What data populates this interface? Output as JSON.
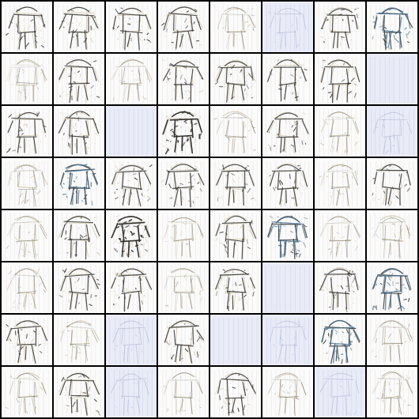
{
  "grid": {
    "rows": 8,
    "cols": 8
  },
  "palette": {
    "border": "#000000",
    "tile_white": "#fbfbfb",
    "tile_blue": "#e9ecf7",
    "ink_dark": "#2a2a2a",
    "ink_blue": "#3d6a8a",
    "ink_tan": "#b8a27a"
  },
  "tiles": [
    {
      "tone": "white",
      "ink": "full"
    },
    {
      "tone": "white",
      "ink": "full"
    },
    {
      "tone": "white",
      "ink": "full"
    },
    {
      "tone": "white",
      "ink": "full"
    },
    {
      "tone": "white",
      "ink": "light"
    },
    {
      "tone": "blue",
      "ink": "faint"
    },
    {
      "tone": "white",
      "ink": "full"
    },
    {
      "tone": "white",
      "ink": "blue"
    },
    {
      "tone": "white",
      "ink": "light"
    },
    {
      "tone": "white",
      "ink": "full"
    },
    {
      "tone": "white",
      "ink": "light"
    },
    {
      "tone": "white",
      "ink": "full"
    },
    {
      "tone": "white",
      "ink": "full"
    },
    {
      "tone": "white",
      "ink": "full"
    },
    {
      "tone": "white",
      "ink": "full"
    },
    {
      "tone": "blue",
      "ink": "none"
    },
    {
      "tone": "white",
      "ink": "full"
    },
    {
      "tone": "white",
      "ink": "full"
    },
    {
      "tone": "blue",
      "ink": "none"
    },
    {
      "tone": "white",
      "ink": "heavy"
    },
    {
      "tone": "white",
      "ink": "light"
    },
    {
      "tone": "white",
      "ink": "full"
    },
    {
      "tone": "white",
      "ink": "light"
    },
    {
      "tone": "blue",
      "ink": "faint"
    },
    {
      "tone": "white",
      "ink": "light"
    },
    {
      "tone": "white",
      "ink": "blue"
    },
    {
      "tone": "white",
      "ink": "full"
    },
    {
      "tone": "white",
      "ink": "full"
    },
    {
      "tone": "white",
      "ink": "full"
    },
    {
      "tone": "white",
      "ink": "full"
    },
    {
      "tone": "white",
      "ink": "light"
    },
    {
      "tone": "white",
      "ink": "full"
    },
    {
      "tone": "white",
      "ink": "light"
    },
    {
      "tone": "white",
      "ink": "full"
    },
    {
      "tone": "white",
      "ink": "heavy"
    },
    {
      "tone": "white",
      "ink": "light"
    },
    {
      "tone": "white",
      "ink": "full"
    },
    {
      "tone": "white",
      "ink": "blue"
    },
    {
      "tone": "white",
      "ink": "light"
    },
    {
      "tone": "white",
      "ink": "light"
    },
    {
      "tone": "white",
      "ink": "light"
    },
    {
      "tone": "white",
      "ink": "full"
    },
    {
      "tone": "white",
      "ink": "full"
    },
    {
      "tone": "white",
      "ink": "light"
    },
    {
      "tone": "white",
      "ink": "full"
    },
    {
      "tone": "blue",
      "ink": "none"
    },
    {
      "tone": "white",
      "ink": "full"
    },
    {
      "tone": "white",
      "ink": "blue"
    },
    {
      "tone": "white",
      "ink": "full"
    },
    {
      "tone": "white",
      "ink": "light"
    },
    {
      "tone": "blue",
      "ink": "faint"
    },
    {
      "tone": "white",
      "ink": "full"
    },
    {
      "tone": "blue",
      "ink": "none"
    },
    {
      "tone": "blue",
      "ink": "faint"
    },
    {
      "tone": "white",
      "ink": "blue"
    },
    {
      "tone": "white",
      "ink": "light"
    },
    {
      "tone": "white",
      "ink": "light"
    },
    {
      "tone": "white",
      "ink": "full"
    },
    {
      "tone": "blue",
      "ink": "faint"
    },
    {
      "tone": "white",
      "ink": "light"
    },
    {
      "tone": "white",
      "ink": "full"
    },
    {
      "tone": "white",
      "ink": "light"
    },
    {
      "tone": "blue",
      "ink": "faint"
    },
    {
      "tone": "white",
      "ink": "light"
    }
  ]
}
